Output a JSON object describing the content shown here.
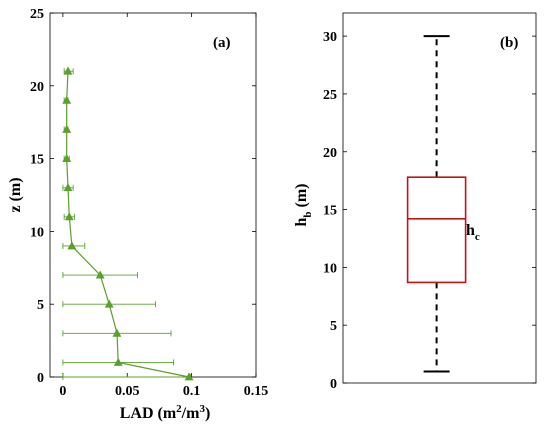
{
  "chart_data": [
    {
      "type": "line",
      "panel_label": "(a)",
      "xlabel": "LAD (m",
      "xlabel_sup1": "2",
      "xlabel_mid": "/m",
      "xlabel_sup2": "3",
      "xlabel_end": ")",
      "ylabel": "z (m)",
      "xlim": [
        -0.01,
        0.15
      ],
      "ylim": [
        0,
        25
      ],
      "xticks": [
        "0",
        "0.05",
        "0.1",
        "0.15"
      ],
      "yticks": [
        "0",
        "5",
        "10",
        "15",
        "20",
        "25"
      ],
      "color": "#5aa02c",
      "series": [
        {
          "points": [
            {
              "x": 0.098,
              "y": 0,
              "xerr_low": 0.098,
              "xerr_high": 0.001
            },
            {
              "x": 0.043,
              "y": 1,
              "xerr_low": 0.043,
              "xerr_high": 0.043
            },
            {
              "x": 0.042,
              "y": 3,
              "xerr_low": 0.042,
              "xerr_high": 0.042
            },
            {
              "x": 0.036,
              "y": 5,
              "xerr_low": 0.036,
              "xerr_high": 0.036
            },
            {
              "x": 0.029,
              "y": 7,
              "xerr_low": 0.029,
              "xerr_high": 0.029
            },
            {
              "x": 0.007,
              "y": 9,
              "xerr_low": 0.007,
              "xerr_high": 0.01
            },
            {
              "x": 0.005,
              "y": 11,
              "xerr_low": 0.004,
              "xerr_high": 0.004
            },
            {
              "x": 0.004,
              "y": 13,
              "xerr_low": 0.004,
              "xerr_high": 0.004
            },
            {
              "x": 0.003,
              "y": 15,
              "xerr_low": 0.002,
              "xerr_high": 0.002
            },
            {
              "x": 0.003,
              "y": 17,
              "xerr_low": 0.002,
              "xerr_high": 0.001
            },
            {
              "x": 0.003,
              "y": 19,
              "xerr_low": 0.002,
              "xerr_high": 0.001
            },
            {
              "x": 0.004,
              "y": 21,
              "xerr_low": 0.003,
              "xerr_high": 0.004
            }
          ]
        }
      ]
    },
    {
      "type": "box",
      "panel_label": "(b)",
      "ylabel": "h",
      "ylabel_sub": "b",
      "ylabel_end": " (m)",
      "ylim": [
        0,
        32
      ],
      "yticks": [
        "0",
        "5",
        "10",
        "15",
        "20",
        "25",
        "30"
      ],
      "box": {
        "min": 1,
        "q1": 8.7,
        "median": 14.2,
        "q3": 17.8,
        "max": 30
      },
      "box_color": "#c0141a",
      "annotation": "h",
      "annotation_sub": "c",
      "annotation_color": "#c0141a"
    }
  ]
}
